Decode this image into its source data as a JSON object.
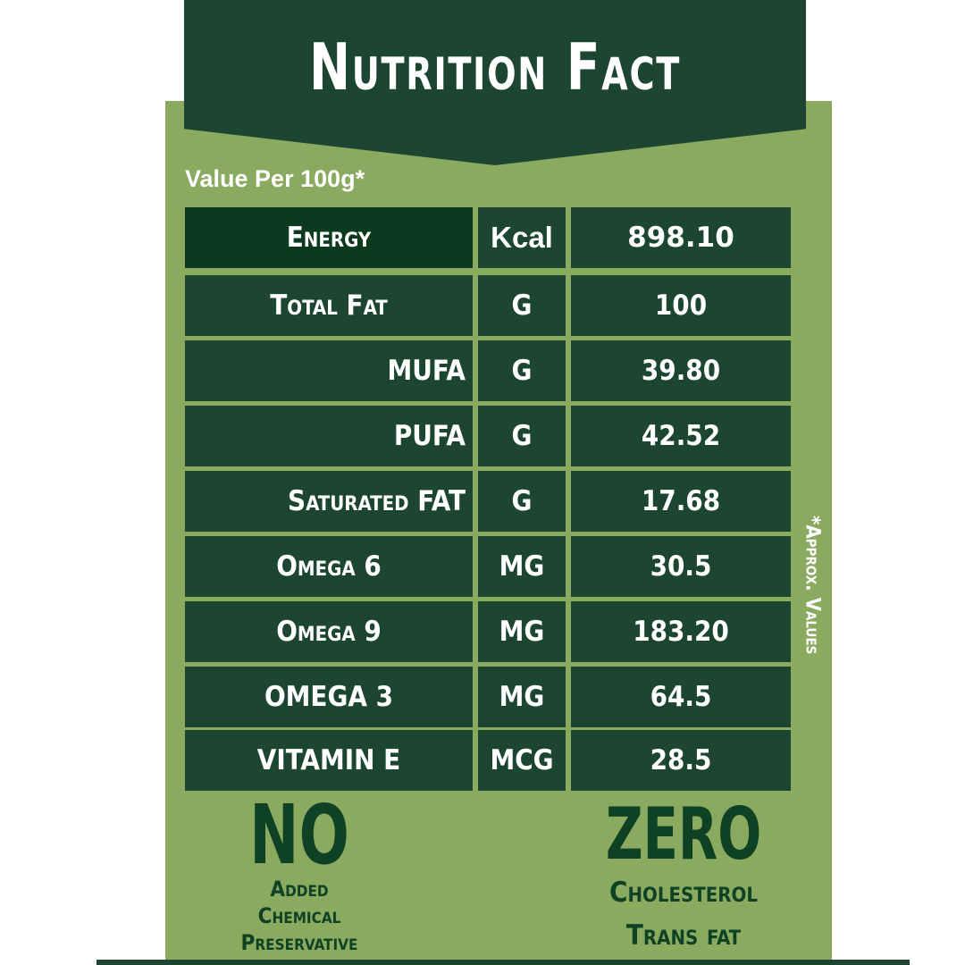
{
  "title": "Nutrition Fact",
  "subtitle": "Value Per 100g*",
  "side_note": "*Approx. Values",
  "rows": [
    {
      "nutrient": "Energy",
      "unit": "Kcal",
      "value": "898.10"
    },
    {
      "nutrient": "Total Fat",
      "unit": "G",
      "value": "100"
    },
    {
      "nutrient": "MUFA",
      "unit": "G",
      "value": "39.80"
    },
    {
      "nutrient": "PUFA",
      "unit": "G",
      "value": "42.52"
    },
    {
      "nutrient": "Saturated FAT",
      "unit": "G",
      "value": "17.68"
    },
    {
      "nutrient": "Omega 6",
      "unit": "MG",
      "value": "30.5"
    },
    {
      "nutrient": "Omega 9",
      "unit": "MG",
      "value": "183.20"
    },
    {
      "nutrient": "OMEGA 3",
      "unit": "MG",
      "value": "64.5"
    },
    {
      "nutrient": "VITAMIN E",
      "unit": "MCG",
      "value": "28.5"
    }
  ],
  "left_badge": {
    "headline": "NO",
    "lines": [
      "Added",
      "Chemical",
      "Preservative"
    ]
  },
  "right_badge": {
    "headline": "ZERO",
    "lines": [
      "Cholesterol",
      "Trans fat"
    ]
  },
  "colors": {
    "dark_green": "#1c4632",
    "energy_green": "#0c3a1e",
    "card_green": "#8aaa60",
    "text_green": "#0f4224"
  }
}
